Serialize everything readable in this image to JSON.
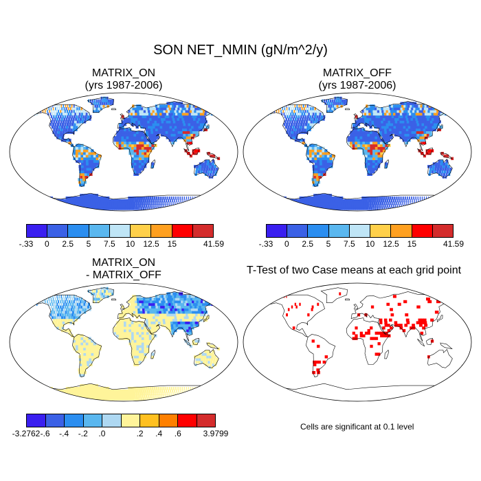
{
  "title": "SON NET_NMIN (gN/m^2/y)",
  "panels": {
    "matrix_on": {
      "title_line1": "MATRIX_ON",
      "title_line2": "(yrs 1987-2006)"
    },
    "matrix_off": {
      "title_line1": "MATRIX_OFF",
      "title_line2": "(yrs 1987-2006)"
    },
    "diff": {
      "title_line1": "MATRIX_ON",
      "title_line2": "- MATRIX_OFF"
    },
    "ttest": {
      "title": "T-Test of two Case means at each grid point",
      "note": "Cells are significant at 0.1 level"
    }
  },
  "colorbars": {
    "main": {
      "colors": [
        "#3a1ff0",
        "#3b61e6",
        "#2b8ef0",
        "#5ab7ef",
        "#bfe5f6",
        "#ffd04a",
        "#ffa020",
        "#ff0000",
        "#d42c2c"
      ],
      "labels": [
        "-.33",
        "0",
        "2.5",
        "5",
        "7.5",
        "10",
        "12.5",
        "15",
        "41.59"
      ]
    },
    "diff": {
      "colors": [
        "#3a1ff0",
        "#3b61e6",
        "#2b8ef0",
        "#5ab7ef",
        "#aed8f2",
        "#fff49a",
        "#ffc020",
        "#ff8000",
        "#ff0000",
        "#d42c2c"
      ],
      "labels": [
        "-3.2762",
        "-.6",
        "-.4",
        "-.2",
        ".0",
        ".2",
        ".4",
        ".6",
        "3.9799"
      ]
    }
  },
  "significance_color": "#ff0000"
}
